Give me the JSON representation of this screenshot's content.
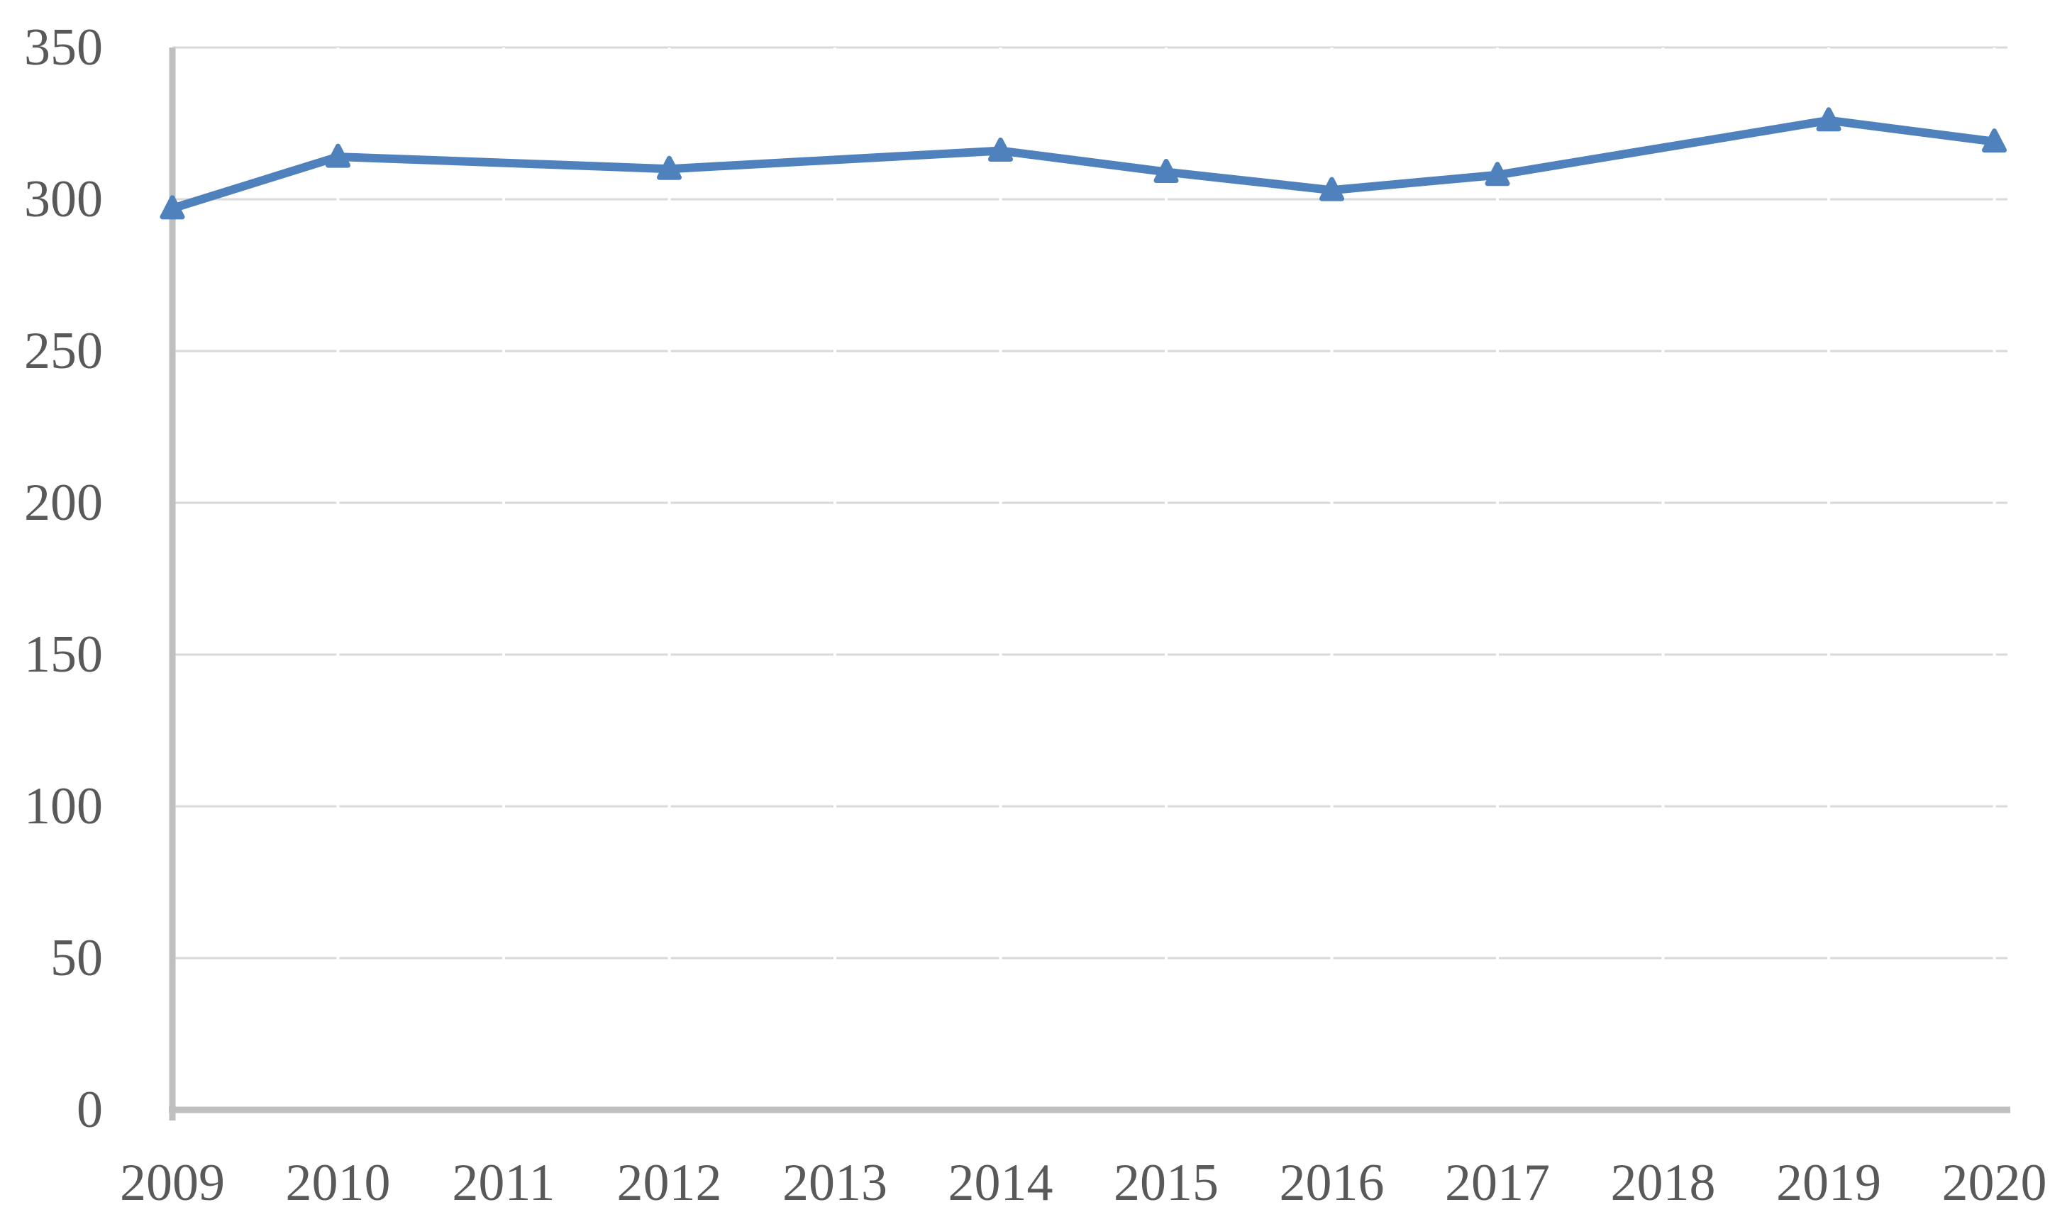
{
  "chart_data": {
    "type": "line",
    "title": "",
    "xlabel": "",
    "ylabel": "",
    "categories": [
      "2009",
      "2010",
      "2011",
      "2012",
      "2013",
      "2014",
      "2015",
      "2016",
      "2017",
      "2018",
      "2019",
      "2020"
    ],
    "values": [
      297,
      314,
      null,
      310,
      null,
      316,
      309,
      303,
      308,
      null,
      326,
      319
    ],
    "ylim": [
      0,
      350
    ],
    "yticks": [
      0,
      50,
      100,
      150,
      200,
      250,
      300,
      350
    ],
    "grid": true,
    "legend": false,
    "marker_shape": "triangle",
    "notes": "no markers or data points at 2011, 2013, 2018; line connects straight across gaps; first point sits on y-axis",
    "colors": {
      "line": "#4F81BD",
      "marker": "#4F81BD",
      "gridline": "#D9D9D9",
      "axis_line": "#BFBFBF",
      "tick_label": "#595959",
      "background": "#FFFFFF"
    },
    "tick_font_size_px": 74
  }
}
